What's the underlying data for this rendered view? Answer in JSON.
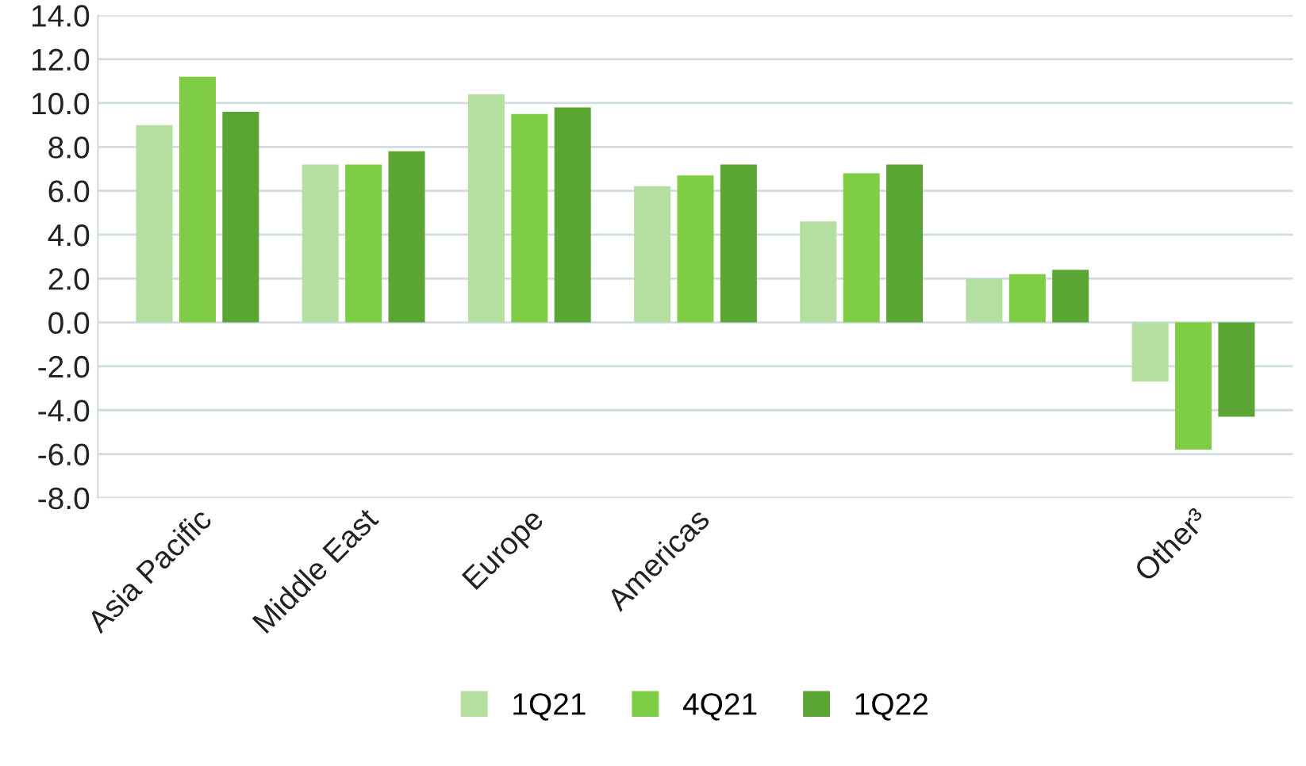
{
  "chart_data": {
    "type": "bar",
    "categories": [
      "Asia Pacific",
      "Middle East",
      "Europe",
      "Americas",
      null,
      null,
      "Other³"
    ],
    "series": [
      {
        "name": "1Q21",
        "color": "#b5dfa0",
        "values": [
          9.0,
          7.2,
          10.4,
          6.2,
          4.6,
          2.0,
          -2.7
        ]
      },
      {
        "name": "4Q21",
        "color": "#7fcc45",
        "values": [
          11.2,
          7.2,
          9.5,
          6.7,
          6.8,
          2.2,
          -5.8
        ]
      },
      {
        "name": "1Q22",
        "color": "#5ba534",
        "values": [
          9.6,
          7.8,
          9.8,
          7.2,
          7.2,
          2.4,
          -4.3
        ]
      }
    ],
    "ylim": [
      -8,
      14
    ],
    "yticks": [
      {
        "value": -8,
        "label": "-8.0"
      },
      {
        "value": -6,
        "label": "-6.0"
      },
      {
        "value": -4,
        "label": "-4.0"
      },
      {
        "value": -2,
        "label": "-2.0"
      },
      {
        "value": 0,
        "label": "0.0"
      },
      {
        "value": 2,
        "label": "2.0"
      },
      {
        "value": 4,
        "label": "4.0"
      },
      {
        "value": 6,
        "label": "6.0"
      },
      {
        "value": 8,
        "label": "8.0"
      },
      {
        "value": 10,
        "label": "10.0"
      },
      {
        "value": 12,
        "label": "12.0"
      },
      {
        "value": 14,
        "label": "14.0"
      }
    ],
    "grid": "y",
    "legend": "bottom"
  }
}
